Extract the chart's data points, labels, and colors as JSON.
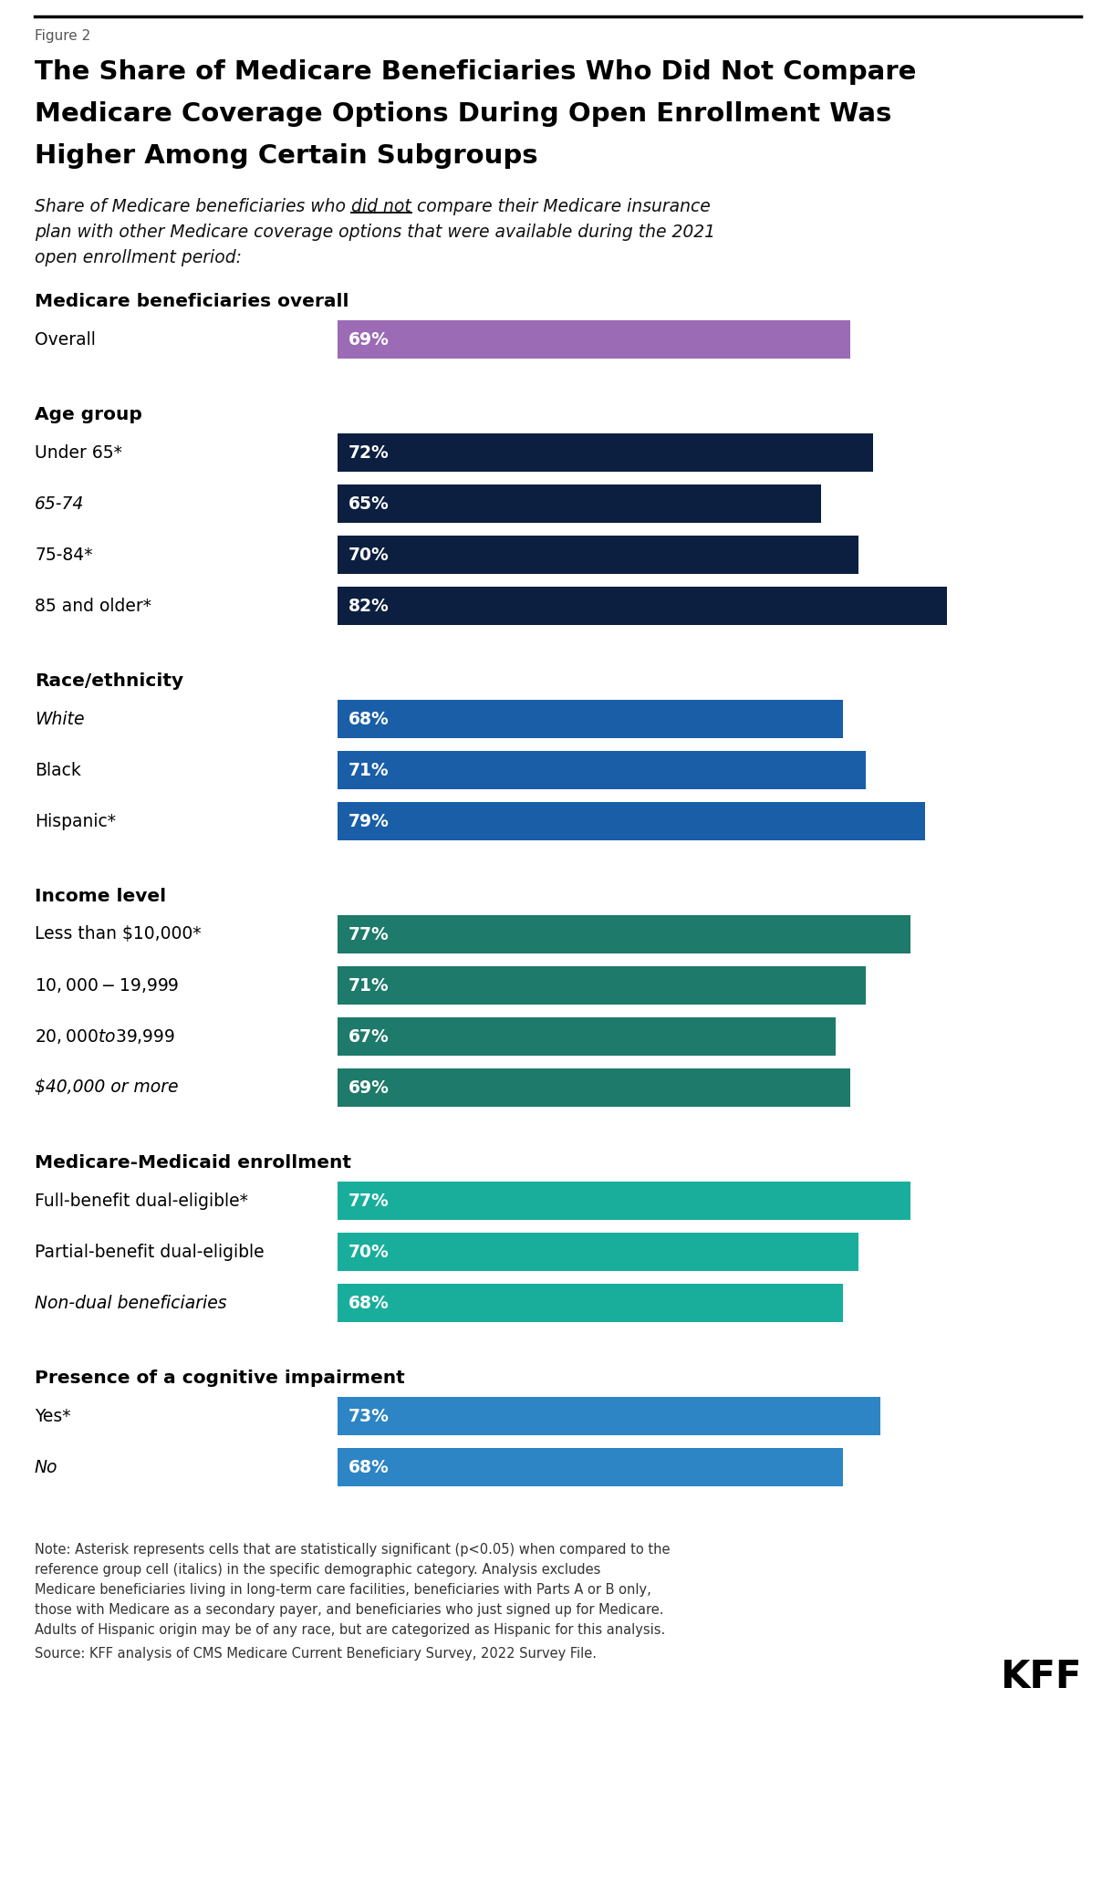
{
  "figure_label": "Figure 2",
  "title_lines": [
    "The Share of Medicare Beneficiaries Who Did Not Compare",
    "Medicare Coverage Options During Open Enrollment Was",
    "Higher Among Certain Subgroups"
  ],
  "sections": [
    {
      "header": "Medicare beneficiaries overall",
      "bars": [
        {
          "label": "Overall",
          "italic": false,
          "value": 69,
          "color": "#9B6BB5"
        }
      ]
    },
    {
      "header": "Age group",
      "bars": [
        {
          "label": "Under 65*",
          "italic": false,
          "value": 72,
          "color": "#0C1F40"
        },
        {
          "label": "65-74",
          "italic": true,
          "value": 65,
          "color": "#0C1F40"
        },
        {
          "label": "75-84*",
          "italic": false,
          "value": 70,
          "color": "#0C1F40"
        },
        {
          "label": "85 and older*",
          "italic": false,
          "value": 82,
          "color": "#0C1F40"
        }
      ]
    },
    {
      "header": "Race/ethnicity",
      "bars": [
        {
          "label": "White",
          "italic": true,
          "value": 68,
          "color": "#1A5EA8"
        },
        {
          "label": "Black",
          "italic": false,
          "value": 71,
          "color": "#1A5EA8"
        },
        {
          "label": "Hispanic*",
          "italic": false,
          "value": 79,
          "color": "#1A5EA8"
        }
      ]
    },
    {
      "header": "Income level",
      "bars": [
        {
          "label": "Less than $10,000*",
          "italic": false,
          "value": 77,
          "color": "#1E7A6A"
        },
        {
          "label": "$10,000-$19,999",
          "italic": false,
          "value": 71,
          "color": "#1E7A6A"
        },
        {
          "label": "$20,000 to $39,999",
          "italic": false,
          "value": 67,
          "color": "#1E7A6A"
        },
        {
          "label": "$40,000 or more",
          "italic": true,
          "value": 69,
          "color": "#1E7A6A"
        }
      ]
    },
    {
      "header": "Medicare-Medicaid enrollment",
      "bars": [
        {
          "label": "Full-benefit dual-eligible*",
          "italic": false,
          "value": 77,
          "color": "#19AE9C"
        },
        {
          "label": "Partial-benefit dual-eligible",
          "italic": false,
          "value": 70,
          "color": "#19AE9C"
        },
        {
          "label": "Non-dual beneficiaries",
          "italic": true,
          "value": 68,
          "color": "#19AE9C"
        }
      ]
    },
    {
      "header": "Presence of a cognitive impairment",
      "bars": [
        {
          "label": "Yes*",
          "italic": false,
          "value": 73,
          "color": "#2D85C5"
        },
        {
          "label": "No",
          "italic": true,
          "value": 68,
          "color": "#2D85C5"
        }
      ]
    }
  ],
  "note_lines": [
    "Note: Asterisk represents cells that are statistically significant (p<0.05) when compared to the",
    "reference group cell (italics) in the specific demographic category. Analysis excludes",
    "Medicare beneficiaries living in long-term care facilities, beneficiaries with Parts A or B only,",
    "those with Medicare as a secondary payer, and beneficiaries who just signed up for Medicare.",
    "Adults of Hispanic origin may be of any race, but are categorized as Hispanic for this analysis."
  ],
  "source_line": "Source: KFF analysis of CMS Medicare Current Beneficiary Survey, 2022 Survey File.",
  "kff_text": "KFF",
  "background_color": "#FFFFFF"
}
